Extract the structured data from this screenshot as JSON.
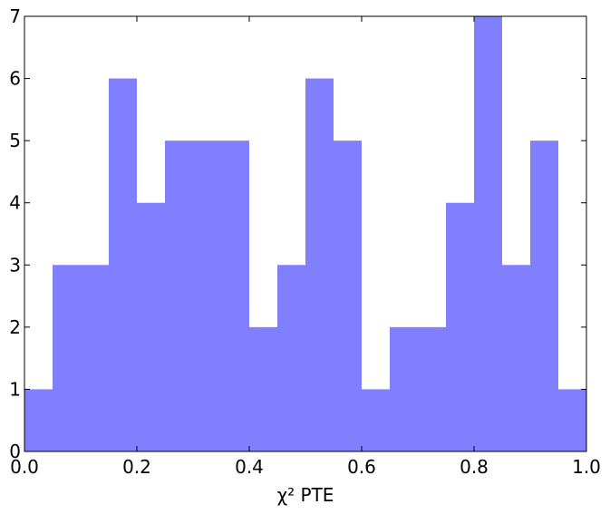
{
  "chart_data": {
    "type": "histogram",
    "xlabel": "χ² PTE",
    "bins": [
      0,
      0.05,
      0.1,
      0.15,
      0.2,
      0.25,
      0.3,
      0.35,
      0.4,
      0.45,
      0.5,
      0.55,
      0.6,
      0.65,
      0.7,
      0.75,
      0.8,
      0.85,
      0.9,
      0.95,
      1
    ],
    "values": [
      1,
      3,
      3,
      6,
      4,
      5,
      5,
      5,
      2,
      3,
      6,
      5,
      1,
      2,
      2,
      4,
      7,
      3,
      5,
      1
    ],
    "color": "#8080ff",
    "xlim": [
      0,
      1
    ],
    "xticks": [
      {
        "value": 0,
        "label": "0.0"
      },
      0.2,
      0.4,
      0.6,
      0.8,
      {
        "value": 1,
        "label": "1.0"
      }
    ],
    "ylim": [
      0,
      7
    ],
    "yticks": [
      0,
      1,
      2,
      3,
      4,
      5,
      6,
      7
    ]
  }
}
